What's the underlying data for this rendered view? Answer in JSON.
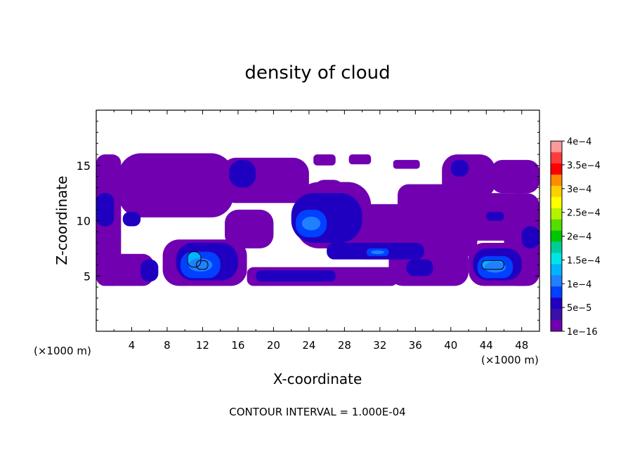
{
  "chart_data": {
    "type": "heatmap",
    "title": "density of cloud",
    "xlabel": "X-coordinate",
    "ylabel": "Z-coordinate",
    "x_unit_left": "(×1000 m)",
    "x_unit_right": "(×1000 m)",
    "xlim": [
      0,
      50
    ],
    "ylim": [
      0,
      20
    ],
    "x_ticks": [
      "4",
      "8",
      "12",
      "16",
      "20",
      "24",
      "28",
      "32",
      "36",
      "40",
      "44",
      "48"
    ],
    "y_ticks": [
      "5",
      "10",
      "15"
    ],
    "footer": "CONTOUR INTERVAL = 1.000E-04",
    "colorbar": {
      "labels": [
        "4e−4",
        "3.5e−4",
        "3e−4",
        "2.5e−4",
        "2e−4",
        "1.5e−4",
        "1e−4",
        "5e−5",
        "1e−16"
      ],
      "colors": [
        "#ff9999",
        "#ff3b3b",
        "#ff0000",
        "#ff8c00",
        "#ffd000",
        "#ffff00",
        "#b5f200",
        "#55dd00",
        "#00c800",
        "#00cc99",
        "#00e5e5",
        "#00b4ff",
        "#2080ff",
        "#0040ff",
        "#2000c0",
        "#3a10a8",
        "#7000b0"
      ]
    },
    "colors": {
      "low": "#7000b0",
      "mid": "#2000c0",
      "high": "#0040ff",
      "peak": "#00b4ff",
      "peak2": "#2080ff"
    },
    "regions": [
      {
        "level": 1,
        "x": [
          0,
          2.8
        ],
        "z": [
          4.1,
          16
        ]
      },
      {
        "level": 1,
        "x": [
          2.5,
          15.5
        ],
        "z": [
          10.3,
          16.1
        ]
      },
      {
        "level": 1,
        "x": [
          14,
          24
        ],
        "z": [
          11.6,
          15.7
        ]
      },
      {
        "level": 1,
        "x": [
          24.5,
          28
        ],
        "z": [
          9.5,
          13.7
        ]
      },
      {
        "level": 1,
        "x": [
          22.5,
          31
        ],
        "z": [
          7.5,
          13.5
        ]
      },
      {
        "level": 1,
        "x": [
          28,
          43
        ],
        "z": [
          6.5,
          11.5
        ]
      },
      {
        "level": 1,
        "x": [
          37,
          50
        ],
        "z": [
          8.2,
          12.5
        ]
      },
      {
        "level": 1,
        "x": [
          34,
          42
        ],
        "z": [
          10.5,
          13.3
        ]
      },
      {
        "level": 1,
        "x": [
          39,
          45
        ],
        "z": [
          12,
          16
        ]
      },
      {
        "level": 1,
        "x": [
          46,
          50
        ],
        "z": [
          4.1,
          12.5
        ]
      },
      {
        "level": 1,
        "x": [
          44.5,
          50
        ],
        "z": [
          12.5,
          15.5
        ]
      },
      {
        "level": 1,
        "x": [
          24.5,
          27
        ],
        "z": [
          15,
          16
        ]
      },
      {
        "level": 1,
        "x": [
          28.5,
          31
        ],
        "z": [
          15.1,
          16
        ]
      },
      {
        "level": 1,
        "x": [
          33.5,
          36.5
        ],
        "z": [
          14.7,
          15.5
        ]
      },
      {
        "level": 1,
        "x": [
          0.5,
          6.5
        ],
        "z": [
          4.1,
          7
        ]
      },
      {
        "level": 1,
        "x": [
          7.5,
          17
        ],
        "z": [
          4.1,
          8.3
        ]
      },
      {
        "level": 1,
        "x": [
          14.5,
          20
        ],
        "z": [
          7.5,
          11
        ]
      },
      {
        "level": 1,
        "x": [
          17,
          34
        ],
        "z": [
          4.1,
          5.8
        ]
      },
      {
        "level": 1,
        "x": [
          33,
          42
        ],
        "z": [
          4.1,
          7.7
        ]
      },
      {
        "level": 1,
        "x": [
          42,
          50
        ],
        "z": [
          4.1,
          8
        ]
      },
      {
        "level": 2,
        "x": [
          0,
          2
        ],
        "z": [
          9.5,
          12.5
        ]
      },
      {
        "level": 2,
        "x": [
          3,
          5
        ],
        "z": [
          9.5,
          10.8
        ]
      },
      {
        "level": 2,
        "x": [
          5,
          7
        ],
        "z": [
          4.5,
          6.5
        ]
      },
      {
        "level": 2,
        "x": [
          15,
          18
        ],
        "z": [
          13,
          15.5
        ]
      },
      {
        "level": 2,
        "x": [
          22,
          30
        ],
        "z": [
          8,
          12.5
        ]
      },
      {
        "level": 2,
        "x": [
          26,
          37
        ],
        "z": [
          6.5,
          8
        ]
      },
      {
        "level": 2,
        "x": [
          18,
          27
        ],
        "z": [
          4.5,
          5.5
        ]
      },
      {
        "level": 2,
        "x": [
          35,
          38
        ],
        "z": [
          5,
          6.5
        ]
      },
      {
        "level": 2,
        "x": [
          40,
          42
        ],
        "z": [
          14,
          15.5
        ]
      },
      {
        "level": 2,
        "x": [
          44,
          46
        ],
        "z": [
          10,
          10.8
        ]
      },
      {
        "level": 2,
        "x": [
          48,
          50
        ],
        "z": [
          7.5,
          9.5
        ]
      },
      {
        "level": 2,
        "x": [
          9,
          16
        ],
        "z": [
          4.6,
          8
        ]
      },
      {
        "level": 2,
        "x": [
          42.5,
          48
        ],
        "z": [
          4.6,
          7.5
        ]
      },
      {
        "level": 3,
        "x": [
          22.5,
          26
        ],
        "z": [
          8.5,
          11
        ]
      },
      {
        "level": 3,
        "x": [
          9.5,
          14
        ],
        "z": [
          4.8,
          7.2
        ]
      },
      {
        "level": 3,
        "x": [
          43,
          47
        ],
        "z": [
          4.8,
          6.8
        ]
      },
      {
        "level": 3,
        "x": [
          30.5,
          33
        ],
        "z": [
          6.8,
          7.5
        ]
      },
      {
        "level": 4,
        "x": [
          10.3,
          11.8
        ],
        "z": [
          5.8,
          7.2
        ]
      },
      {
        "level": 4,
        "x": [
          11.3,
          12.6
        ],
        "z": [
          5.6,
          6.4
        ]
      },
      {
        "level": 4,
        "x": [
          43.5,
          46
        ],
        "z": [
          5.6,
          6.4
        ]
      }
    ]
  }
}
